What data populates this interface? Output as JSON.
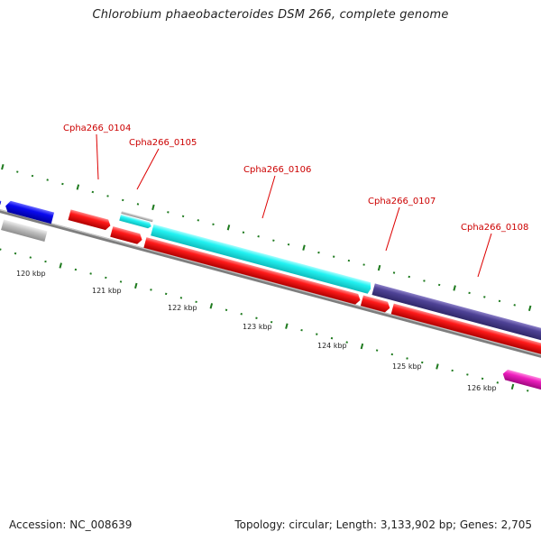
{
  "title": "Chlorobium phaeobacteroides DSM 266, complete genome",
  "footer": {
    "accession": "Accession: NC_008639",
    "summary": "Topology: circular; Length: 3,133,902 bp; Genes: 2,705"
  },
  "colors": {
    "red": "#f50000",
    "cyan": "#19f5f5",
    "blue": "#0000dc",
    "slate": "#4b3f8c",
    "gray": "#b4b4b4",
    "magenta": "#e619b4",
    "label_red": "#cc0000",
    "tick_green": "#1e7a1e",
    "backbone": "#808080"
  },
  "scale": {
    "unit": "kbp",
    "ticks": [
      {
        "kbp": 120,
        "label": "120 kbp"
      },
      {
        "kbp": 121,
        "label": "121 kbp"
      },
      {
        "kbp": 122,
        "label": "122 kbp"
      },
      {
        "kbp": 123,
        "label": "123 kbp"
      },
      {
        "kbp": 124,
        "label": "124 kbp"
      },
      {
        "kbp": 125,
        "label": "125 kbp"
      },
      {
        "kbp": 126,
        "label": "126 kbp"
      }
    ]
  },
  "gene_labels": [
    {
      "text": "Cpha266_0104"
    },
    {
      "text": "Cpha266_0105"
    },
    {
      "text": "Cpha266_0106"
    },
    {
      "text": "Cpha266_0107"
    },
    {
      "text": "Cpha266_0108"
    }
  ],
  "features": [
    {
      "name": "blue-gene-a",
      "color": "blue",
      "strand": "reverse"
    },
    {
      "name": "blue-gene-b",
      "color": "blue",
      "strand": "reverse"
    },
    {
      "name": "gray-gene-a",
      "color": "gray",
      "strand": "none"
    },
    {
      "name": "red-gene-0104",
      "color": "red",
      "strand": "forward"
    },
    {
      "name": "gray-gene-0105",
      "color": "gray",
      "strand": "none"
    },
    {
      "name": "cyan-gene-0105",
      "color": "cyan",
      "strand": "forward"
    },
    {
      "name": "red-gene-0105",
      "color": "red",
      "strand": "forward"
    },
    {
      "name": "cyan-gene-0106",
      "color": "cyan",
      "strand": "forward"
    },
    {
      "name": "red-gene-0106",
      "color": "red",
      "strand": "forward"
    },
    {
      "name": "red-gene-0107",
      "color": "red",
      "strand": "forward"
    },
    {
      "name": "slate-gene-0108",
      "color": "slate",
      "strand": "forward"
    },
    {
      "name": "red-gene-0108",
      "color": "red",
      "strand": "forward"
    },
    {
      "name": "magenta-gene",
      "color": "magenta",
      "strand": "reverse"
    }
  ]
}
